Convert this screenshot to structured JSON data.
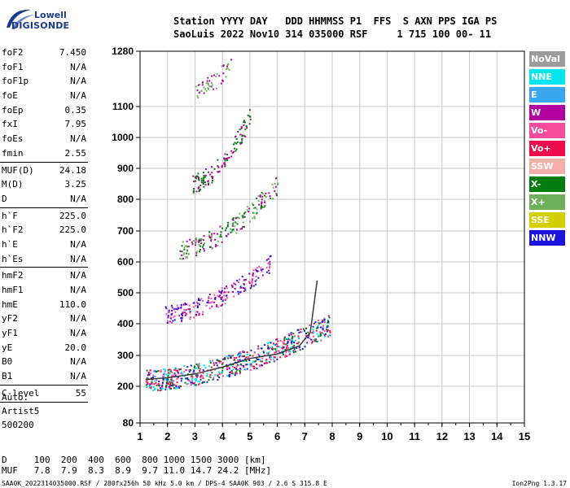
{
  "logo": {
    "line1": "Lowell",
    "line2": "DIGISONDE"
  },
  "header": {
    "row1": "Station YYYY DAY   DDD HHMMSS P1  FFS  S AXN PPS IGA PS",
    "row2": "SaoLuis 2022 Nov10 314 035000 RSF     1 715 100 00- 11"
  },
  "params": [
    {
      "k": "foF2",
      "v": "7.450"
    },
    {
      "k": "foF1",
      "v": "N/A"
    },
    {
      "k": "foF1p",
      "v": "N/A"
    },
    {
      "k": "foE",
      "v": "N/A"
    },
    {
      "k": "foEp",
      "v": "0.35"
    },
    {
      "k": "fxI",
      "v": "7.95"
    },
    {
      "k": "foEs",
      "v": "N/A"
    },
    {
      "k": "fmin",
      "v": "2.55"
    },
    {
      "sep": true
    },
    {
      "k": "MUF(D)",
      "v": "24.18"
    },
    {
      "k": "M(D)",
      "v": "3.25"
    },
    {
      "k": "D",
      "v": "N/A"
    },
    {
      "sep": true
    },
    {
      "k": "h`F",
      "v": "225.0"
    },
    {
      "k": "h`F2",
      "v": "225.0"
    },
    {
      "k": "h`E",
      "v": "N/A"
    },
    {
      "k": "h`Es",
      "v": "N/A"
    },
    {
      "sep": true
    },
    {
      "k": "hmF2",
      "v": "N/A"
    },
    {
      "k": "hmF1",
      "v": "N/A"
    },
    {
      "k": "hmE",
      "v": "110.0"
    },
    {
      "k": "yF2",
      "v": "N/A"
    },
    {
      "k": "yF1",
      "v": "N/A"
    },
    {
      "k": "yE",
      "v": "20.0"
    },
    {
      "k": "B0",
      "v": "N/A"
    },
    {
      "k": "B1",
      "v": "N/A"
    },
    {
      "sep": true
    },
    {
      "k": "C-level",
      "v": "55"
    },
    {
      "sep": true
    }
  ],
  "auto": [
    "Auto:",
    "Artist5",
    "500200"
  ],
  "legend": [
    {
      "label": "NoVal",
      "color": "#9c9c9c"
    },
    {
      "label": "NNE",
      "color": "#00e5f0"
    },
    {
      "label": "E",
      "color": "#3aa6ef"
    },
    {
      "label": "W",
      "color": "#b0009e"
    },
    {
      "label": "Vo-",
      "color": "#f44b9f"
    },
    {
      "label": "Vo+",
      "color": "#ee0a4a"
    },
    {
      "label": "SSW",
      "color": "#f4b0a8"
    },
    {
      "label": "X-",
      "color": "#007b0d"
    },
    {
      "label": "X+",
      "color": "#6fb05a"
    },
    {
      "label": "SSE",
      "color": "#d4d000"
    },
    {
      "label": "NNW",
      "color": "#1b13dc"
    }
  ],
  "dtable": {
    "row1": "D     100  200  400  600  800 1000 1500 3000 [km]",
    "row2": "MUF   7.8  7.9  8.3  8.9  9.7 11.0 14.7 24.2 [MHz]"
  },
  "footer": "SAA0K_2022314035000.RSF / 280fx256h 50 kHz 5.0 km / DPS-4 SAA0K 903 / 2.6 S 315.8 E",
  "version": "Ion2Png 1.3.17",
  "chart_data": {
    "type": "scatter",
    "title": "",
    "xlabel": "",
    "ylabel": "",
    "xlim": [
      1,
      15
    ],
    "ylim": [
      80,
      1280
    ],
    "x_ticks": [
      1,
      2,
      3,
      4,
      5,
      6,
      7,
      8,
      9,
      10,
      11,
      12,
      13,
      14,
      15
    ],
    "y_ticks": [
      80,
      200,
      300,
      400,
      500,
      600,
      700,
      800,
      900,
      1000,
      1100,
      1280
    ],
    "grid": true,
    "scale": "ionogram-virtual-height",
    "traces": [
      {
        "name": "F trace",
        "x_range": [
          1.2,
          7.9
        ],
        "y_range": [
          220,
          400
        ],
        "colors": [
          "#1b13dc",
          "#f44b9f",
          "#ee0a4a",
          "#007b0d",
          "#00e5f0"
        ]
      },
      {
        "name": "2F echo",
        "x_range": [
          1.9,
          5.8
        ],
        "y_range": [
          430,
          600
        ],
        "colors": [
          "#1b13dc",
          "#f44b9f",
          "#b0009e"
        ]
      },
      {
        "name": "3F echo",
        "x_range": [
          2.4,
          6.0
        ],
        "y_range": [
          640,
          850
        ],
        "colors": [
          "#b0009e",
          "#007b0d",
          "#6fb05a"
        ]
      },
      {
        "name": "4F echo",
        "x_range": [
          2.9,
          5.0
        ],
        "y_range": [
          850,
          1070
        ],
        "colors": [
          "#b0009e",
          "#007b0d"
        ]
      },
      {
        "name": "5F echo",
        "x_range": [
          3.0,
          4.3
        ],
        "y_range": [
          1150,
          1250
        ],
        "colors": [
          "#b0009e",
          "#6fb05a"
        ]
      }
    ],
    "fitted_trace": {
      "x": [
        1.2,
        2.0,
        3.0,
        4.0,
        5.0,
        6.0,
        6.8,
        7.2,
        7.45
      ],
      "y": [
        222,
        228,
        240,
        262,
        290,
        305,
        330,
        372,
        540
      ]
    }
  }
}
